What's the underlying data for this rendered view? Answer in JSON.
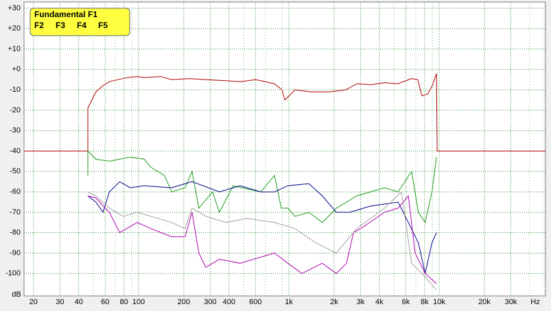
{
  "chart_data": {
    "type": "line",
    "x_unit": "Hz",
    "y_unit": "dB",
    "xscale": "log",
    "grid": true,
    "xlim": [
      17.3,
      51000
    ],
    "ylim": [
      -111,
      33
    ],
    "xticks": [
      20,
      30,
      40,
      60,
      80,
      100,
      200,
      300,
      400,
      600,
      {
        "value": 1000,
        "label": "1k"
      },
      {
        "value": 2000,
        "label": "2k"
      },
      {
        "value": 3000,
        "label": "3k"
      },
      {
        "value": 4000,
        "label": "4k"
      },
      {
        "value": 6000,
        "label": "6k"
      },
      {
        "value": 8000,
        "label": "8k"
      },
      {
        "value": 10000,
        "label": "10k"
      },
      {
        "value": 20000,
        "label": "20k"
      },
      {
        "value": 30000,
        "label": "30k"
      }
    ],
    "xminor_ticks": [
      50,
      70,
      90,
      500,
      700,
      900,
      5000,
      7000,
      9000,
      40000,
      50000
    ],
    "yticks": [
      {
        "value": 30,
        "label": "+30"
      },
      {
        "value": 20,
        "label": "+20"
      },
      {
        "value": 10,
        "label": "+10"
      },
      {
        "value": 0,
        "label": "+0"
      },
      -10,
      -20,
      -30,
      -40,
      -50,
      -60,
      -70,
      -80,
      -90,
      -100
    ],
    "series": [
      {
        "name": "Fundamental F1",
        "color": "#b00000",
        "x": [
          17.3,
          46,
          46,
          52,
          58,
          64,
          84,
          98,
          109,
          140,
          166,
          220,
          280,
          380,
          474,
          600,
          802,
          900,
          940,
          1100,
          1400,
          1860,
          2400,
          2830,
          3500,
          4320,
          5300,
          6560,
          7200,
          7690,
          8400,
          9000,
          9600,
          9700,
          51000
        ],
        "values": [
          -40,
          -40,
          -19,
          -11,
          -8,
          -6,
          -4,
          -3.5,
          -4,
          -3.5,
          -5,
          -4.5,
          -5,
          -5.5,
          -6,
          -5,
          -7,
          -10,
          -15,
          -10,
          -11,
          -11,
          -10,
          -7,
          -7.5,
          -6.5,
          -7,
          -4.5,
          -5,
          -13,
          -12,
          -8,
          -2,
          -40,
          -40
        ]
      },
      {
        "name": "F2",
        "color": "#1a9a1a",
        "x": [
          46,
          46,
          52,
          64,
          88,
          109,
          121,
          149,
          166,
          204,
          227,
          252,
          311,
          345,
          426,
          650,
          802,
          890,
          985,
          1100,
          1360,
          1670,
          2070,
          2830,
          4320,
          5330,
          6560,
          7270,
          8070,
          8950,
          9600
        ],
        "values": [
          -52,
          -40,
          -44,
          -45,
          -43,
          -44,
          -48,
          -52,
          -60,
          -58,
          -50,
          -68,
          -60,
          -70,
          -57,
          -60,
          -52,
          -68,
          -68,
          -72,
          -70,
          -75,
          -68,
          -62,
          -58,
          -60,
          -50,
          -70,
          -75,
          -60,
          -43
        ]
      },
      {
        "name": "F3",
        "color": "#00008b",
        "x": [
          46,
          52,
          58,
          64,
          75,
          88,
          109,
          166,
          227,
          345,
          474,
          650,
          802,
          985,
          1360,
          1670,
          2070,
          2550,
          3490,
          5330,
          6240,
          7270,
          8070,
          8950,
          9600
        ],
        "values": [
          -62,
          -65,
          -70,
          -60,
          -55,
          -58,
          -57,
          -58,
          -55,
          -60,
          -57,
          -60,
          -60,
          -57,
          -56,
          -62,
          -70,
          -70,
          -67,
          -65,
          -75,
          -85,
          -100,
          -85,
          -80
        ]
      },
      {
        "name": "F4",
        "color": "#b000b0",
        "x": [
          46,
          52,
          64,
          75,
          98,
          121,
          166,
          204,
          227,
          252,
          280,
          345,
          474,
          802,
          985,
          1220,
          1670,
          2070,
          2420,
          2690,
          3150,
          4320,
          5330,
          6240,
          6920,
          8070,
          9600
        ],
        "values": [
          -62,
          -63,
          -70,
          -80,
          -75,
          -78,
          -82,
          -82,
          -70,
          -90,
          -97,
          -93,
          -95,
          -90,
          -95,
          -100,
          -95,
          -100,
          -95,
          -80,
          -77,
          -70,
          -68,
          -62,
          -90,
          -100,
          -105
        ]
      },
      {
        "name": "F5",
        "color": "#a0a0a0",
        "x": [
          46,
          52,
          64,
          79,
          98,
          121,
          166,
          204,
          227,
          280,
          384,
          526,
          802,
          1100,
          1510,
          2070,
          2830,
          4320,
          5610,
          6560,
          7690,
          9600
        ],
        "values": [
          -60,
          -62,
          -68,
          -72,
          -70,
          -72,
          -75,
          -78,
          -68,
          -72,
          -75,
          -73,
          -75,
          -78,
          -85,
          -90,
          -78,
          -68,
          -60,
          -95,
          -100,
          -108
        ]
      }
    ]
  }
}
